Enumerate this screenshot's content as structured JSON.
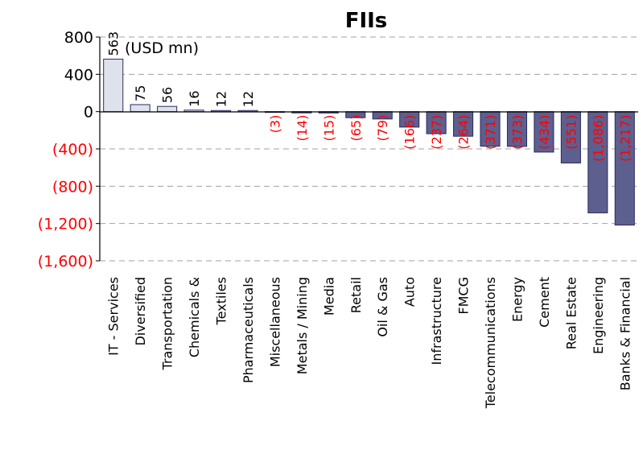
{
  "chart_data": {
    "type": "bar",
    "title": "FIIs",
    "unit_note": "(USD mn)",
    "ylim": [
      -1600,
      800
    ],
    "ytick_values": [
      800,
      400,
      0,
      -400,
      -800,
      -1200,
      -1600
    ],
    "ytick_labels": [
      "800",
      "400",
      "0",
      "(400)",
      "(800)",
      "(1,200)",
      "(1,600)"
    ],
    "grid": true,
    "categories": [
      "IT - Services",
      "Diversified",
      "Transportation",
      "Chemicals &",
      "Textiles",
      "Pharmaceuticals",
      "Miscellaneous",
      "Metals / Mining",
      "Media",
      "Retail",
      "Oil & Gas",
      "Auto",
      "Infrastructure",
      "FMCG",
      "Telecommunications",
      "Energy",
      "Cement",
      "Real Estate",
      "Engineering",
      "Banks & Financial"
    ],
    "values": [
      563,
      75,
      56,
      16,
      12,
      12,
      -3,
      -14,
      -15,
      -65,
      -79,
      -166,
      -237,
      -264,
      -371,
      -373,
      -434,
      -551,
      -1086,
      -1217
    ],
    "data_labels": [
      "563",
      "75",
      "56",
      "16",
      "12",
      "12",
      "(3)",
      "(14)",
      "(15)",
      "(65)",
      "(79)",
      "(166)",
      "(237)",
      "(264)",
      "(371)",
      "(373)",
      "(434)",
      "(551)",
      "(1,086)",
      "(1,217)"
    ],
    "colors": {
      "positive_fill": "#dfe2ec",
      "negative_fill": "#5d5f8f",
      "bar_stroke": "#2a2c5e",
      "negative_text": "#ff0000",
      "positive_text": "#000000",
      "grid": "#a0a0a0"
    }
  }
}
